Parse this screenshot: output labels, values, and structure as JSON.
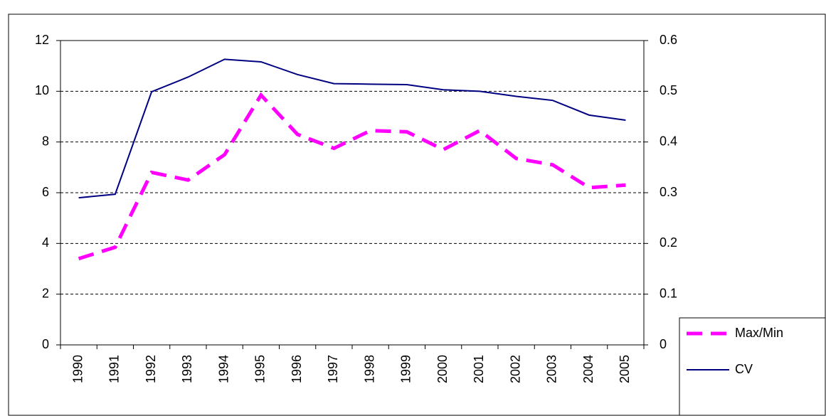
{
  "chart_data": {
    "type": "line",
    "categories": [
      "1990",
      "1991",
      "1992",
      "1993",
      "1994",
      "1995",
      "1996",
      "1997",
      "1998",
      "1999",
      "2000",
      "2001",
      "2002",
      "2003",
      "2004",
      "2005"
    ],
    "series": [
      {
        "name": "Max/Min",
        "color": "#ff00ff",
        "dashed": true,
        "values": [
          3.4,
          3.85,
          6.8,
          6.5,
          7.5,
          9.85,
          8.3,
          7.75,
          8.45,
          8.4,
          7.7,
          8.45,
          7.35,
          7.1,
          6.2,
          6.3
        ]
      },
      {
        "name": "CV",
        "color": "#000080",
        "axis": "y2",
        "values": [
          0.29,
          0.297,
          0.499,
          0.528,
          0.563,
          0.558,
          0.533,
          0.515,
          0.514,
          0.513,
          0.503,
          0.5,
          0.49,
          0.482,
          0.453,
          0.443
        ]
      }
    ],
    "ylim": [
      0,
      12
    ],
    "yticks": [
      0,
      2,
      4,
      6,
      8,
      10,
      12
    ],
    "y2lim": [
      0,
      0.6
    ],
    "y2ticks": [
      0,
      0.1,
      0.2,
      0.3,
      0.4,
      0.5,
      0.6
    ],
    "grid": true,
    "legend": "bottom-right"
  }
}
